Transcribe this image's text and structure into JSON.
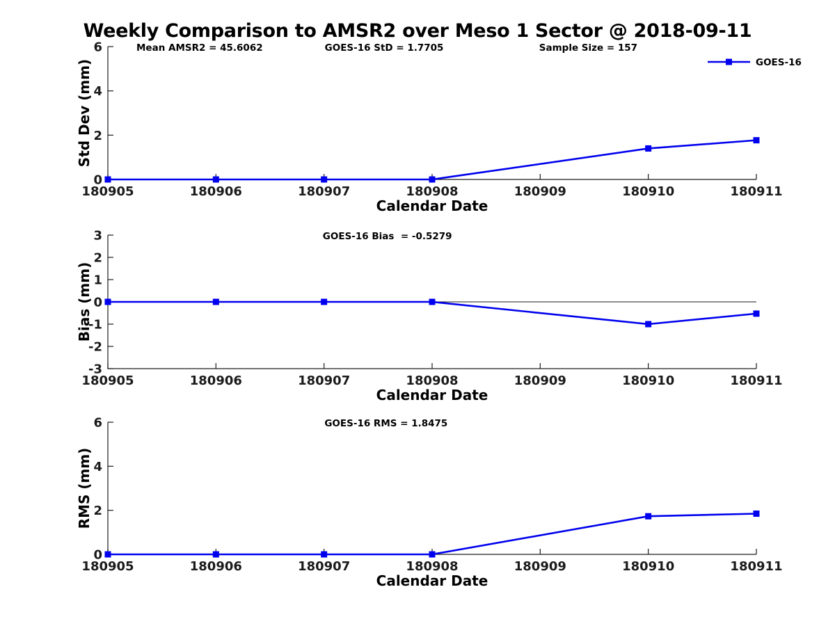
{
  "figure": {
    "title": "Weekly Comparison to AMSR2 over Meso 1 Sector @ 2018-09-11",
    "background": "#ffffff",
    "accent_blue": "#0000ee",
    "axis_color": "#1a1a1a",
    "text_color": "#000000"
  },
  "chart_data": [
    {
      "type": "line",
      "ylabel": "Std Dev (mm)",
      "xlabel": "Calendar Date",
      "xlim": [
        180905,
        180911
      ],
      "ylim": [
        0,
        6
      ],
      "yticks": [
        0,
        2,
        4,
        6
      ],
      "xticks": [
        180905,
        180906,
        180907,
        180908,
        180909,
        180910,
        180911
      ],
      "grid": false,
      "zero_line": false,
      "series": [
        {
          "name": "GOES-16",
          "color": "#0000ee",
          "marker": "square",
          "x": [
            180905,
            180906,
            180907,
            180908,
            180910,
            180911
          ],
          "y": [
            0,
            0,
            0,
            0,
            1.4,
            1.7705
          ]
        }
      ],
      "annotations": [
        {
          "text": "Mean AMSR2 = 45.6062",
          "align": "left",
          "xf": 0.044
        },
        {
          "text": "GOES-16 StD = 1.7705",
          "align": "center",
          "xf": 0.426
        },
        {
          "text": "Sample Size = 157",
          "align": "left",
          "xf": 0.665
        }
      ],
      "legend": {
        "label": "GOES-16",
        "position": "top-right"
      }
    },
    {
      "type": "line",
      "ylabel": "Bias (mm)",
      "xlabel": "Calendar Date",
      "xlim": [
        180905,
        180911
      ],
      "ylim": [
        -3,
        3
      ],
      "yticks": [
        -3,
        -2,
        -1,
        0,
        1,
        2,
        3
      ],
      "xticks": [
        180905,
        180906,
        180907,
        180908,
        180909,
        180910,
        180911
      ],
      "grid": false,
      "zero_line": true,
      "series": [
        {
          "name": "GOES-16",
          "color": "#0000ee",
          "marker": "square",
          "x": [
            180905,
            180906,
            180907,
            180908,
            180910,
            180911
          ],
          "y": [
            0,
            0,
            0,
            0,
            -1.0,
            -0.5279
          ]
        }
      ],
      "annotations": [
        {
          "text": "GOES-16 Bias  = -0.5279",
          "align": "center",
          "xf": 0.431
        }
      ],
      "legend": null
    },
    {
      "type": "line",
      "ylabel": "RMS (mm)",
      "xlabel": "Calendar Date",
      "xlim": [
        180905,
        180911
      ],
      "ylim": [
        0,
        6
      ],
      "yticks": [
        0,
        2,
        4,
        6
      ],
      "xticks": [
        180905,
        180906,
        180907,
        180908,
        180909,
        180910,
        180911
      ],
      "grid": false,
      "zero_line": false,
      "series": [
        {
          "name": "GOES-16",
          "color": "#0000ee",
          "marker": "square",
          "x": [
            180905,
            180906,
            180907,
            180908,
            180910,
            180911
          ],
          "y": [
            0,
            0,
            0,
            0,
            1.73,
            1.8475
          ]
        }
      ],
      "annotations": [
        {
          "text": "GOES-16 RMS = 1.8475",
          "align": "center",
          "xf": 0.429
        }
      ],
      "legend": null
    }
  ]
}
